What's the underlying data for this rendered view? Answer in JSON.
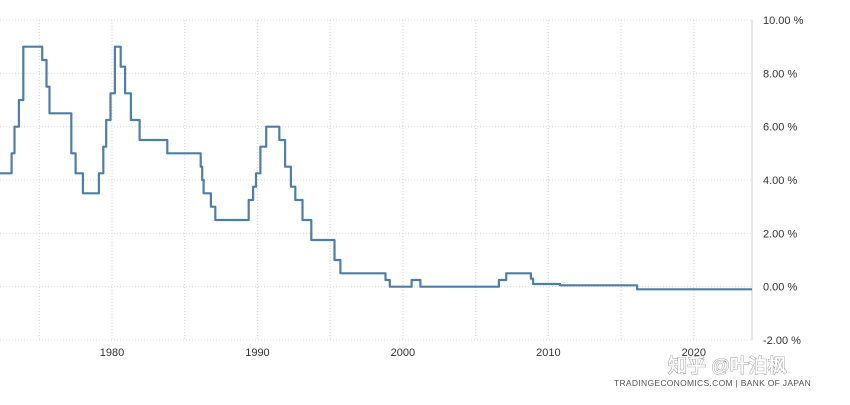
{
  "chart_data": {
    "type": "line",
    "title": "",
    "xlabel": "",
    "ylabel": "",
    "x_ticks": [
      1980,
      1990,
      2000,
      2010,
      2020
    ],
    "y_ticks": [
      -2,
      0,
      2,
      4,
      6,
      8,
      10
    ],
    "y_tick_labels": [
      "-2.00 %",
      "0.00 %",
      "2.00 %",
      "4.00 %",
      "6.00 %",
      "8.00 %",
      "10.00 %"
    ],
    "xlim": [
      1972.3,
      2024.0
    ],
    "ylim": [
      -2,
      10
    ],
    "grid": true,
    "y_axis_side": "right",
    "step": true,
    "series": [
      {
        "color": "#4f7ea6",
        "points": [
          [
            1972.3,
            4.25
          ],
          [
            1973.1,
            5.0
          ],
          [
            1973.3,
            6.0
          ],
          [
            1973.6,
            7.0
          ],
          [
            1973.9,
            9.0
          ],
          [
            1975.2,
            8.5
          ],
          [
            1975.5,
            7.5
          ],
          [
            1975.7,
            6.5
          ],
          [
            1977.2,
            5.0
          ],
          [
            1977.5,
            4.25
          ],
          [
            1978.0,
            3.5
          ],
          [
            1979.1,
            4.25
          ],
          [
            1979.4,
            5.25
          ],
          [
            1979.6,
            6.25
          ],
          [
            1979.9,
            7.25
          ],
          [
            1980.2,
            9.0
          ],
          [
            1980.6,
            8.25
          ],
          [
            1980.9,
            7.25
          ],
          [
            1981.3,
            6.25
          ],
          [
            1981.9,
            5.5
          ],
          [
            1983.8,
            5.0
          ],
          [
            1986.1,
            4.5
          ],
          [
            1986.2,
            4.0
          ],
          [
            1986.3,
            3.5
          ],
          [
            1986.8,
            3.0
          ],
          [
            1987.1,
            2.5
          ],
          [
            1989.4,
            3.25
          ],
          [
            1989.7,
            3.75
          ],
          [
            1989.9,
            4.25
          ],
          [
            1990.2,
            5.25
          ],
          [
            1990.6,
            6.0
          ],
          [
            1991.5,
            5.5
          ],
          [
            1991.9,
            4.5
          ],
          [
            1992.3,
            3.75
          ],
          [
            1992.6,
            3.25
          ],
          [
            1993.1,
            2.5
          ],
          [
            1993.7,
            1.75
          ],
          [
            1995.3,
            1.0
          ],
          [
            1995.7,
            0.5
          ],
          [
            1998.8,
            0.25
          ],
          [
            1999.1,
            0.0
          ],
          [
            2000.6,
            0.25
          ],
          [
            2001.2,
            0.0
          ],
          [
            2006.6,
            0.25
          ],
          [
            2007.1,
            0.5
          ],
          [
            2008.8,
            0.3
          ],
          [
            2008.95,
            0.1
          ],
          [
            2010.8,
            0.05
          ],
          [
            2016.1,
            -0.1
          ],
          [
            2024.0,
            -0.1
          ]
        ]
      }
    ],
    "source": "TRADINGECONOMICS.COM  |  BANK OF JAPAN",
    "watermark": "知乎 @叶泊枫"
  }
}
